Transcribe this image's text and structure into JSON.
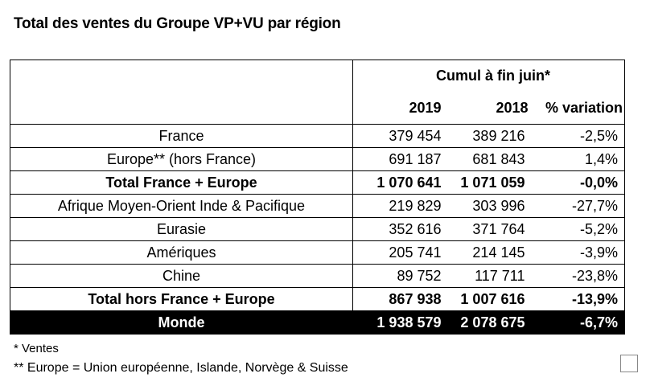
{
  "title": "Total des ventes du Groupe VP+VU par région",
  "table": {
    "group_header": "Cumul à fin juin*",
    "columns": [
      "2019",
      "2018",
      "% variation"
    ],
    "rows": [
      {
        "region": "France",
        "v2019": "379 454",
        "v2018": "389 216",
        "variation": "-2,5%",
        "style": "normal"
      },
      {
        "region": "Europe** (hors France)",
        "v2019": "691 187",
        "v2018": "681 843",
        "variation": "1,4%",
        "style": "normal"
      },
      {
        "region": "Total France + Europe",
        "v2019": "1 070 641",
        "v2018": "1 071 059",
        "variation": "-0,0%",
        "style": "bold"
      },
      {
        "region": "Afrique Moyen-Orient Inde & Pacifique",
        "v2019": "219 829",
        "v2018": "303 996",
        "variation": "-27,7%",
        "style": "normal"
      },
      {
        "region": "Eurasie",
        "v2019": "352 616",
        "v2018": "371 764",
        "variation": "-5,2%",
        "style": "normal"
      },
      {
        "region": "Amériques",
        "v2019": "205 741",
        "v2018": "214 145",
        "variation": "-3,9%",
        "style": "normal"
      },
      {
        "region": "Chine",
        "v2019": "89 752",
        "v2018": "117 711",
        "variation": "-23,8%",
        "style": "normal"
      },
      {
        "region": "Total hors France + Europe",
        "v2019": "867 938",
        "v2018": "1 007 616",
        "variation": "-13,9%",
        "style": "bold"
      },
      {
        "region": "Monde",
        "v2019": "1 938 579",
        "v2018": "2 078 675",
        "variation": "-6,7%",
        "style": "monde"
      }
    ]
  },
  "footnotes": {
    "note1": "* Ventes",
    "note2": "** Europe = Union européenne, Islande, Norvège & Suisse"
  }
}
